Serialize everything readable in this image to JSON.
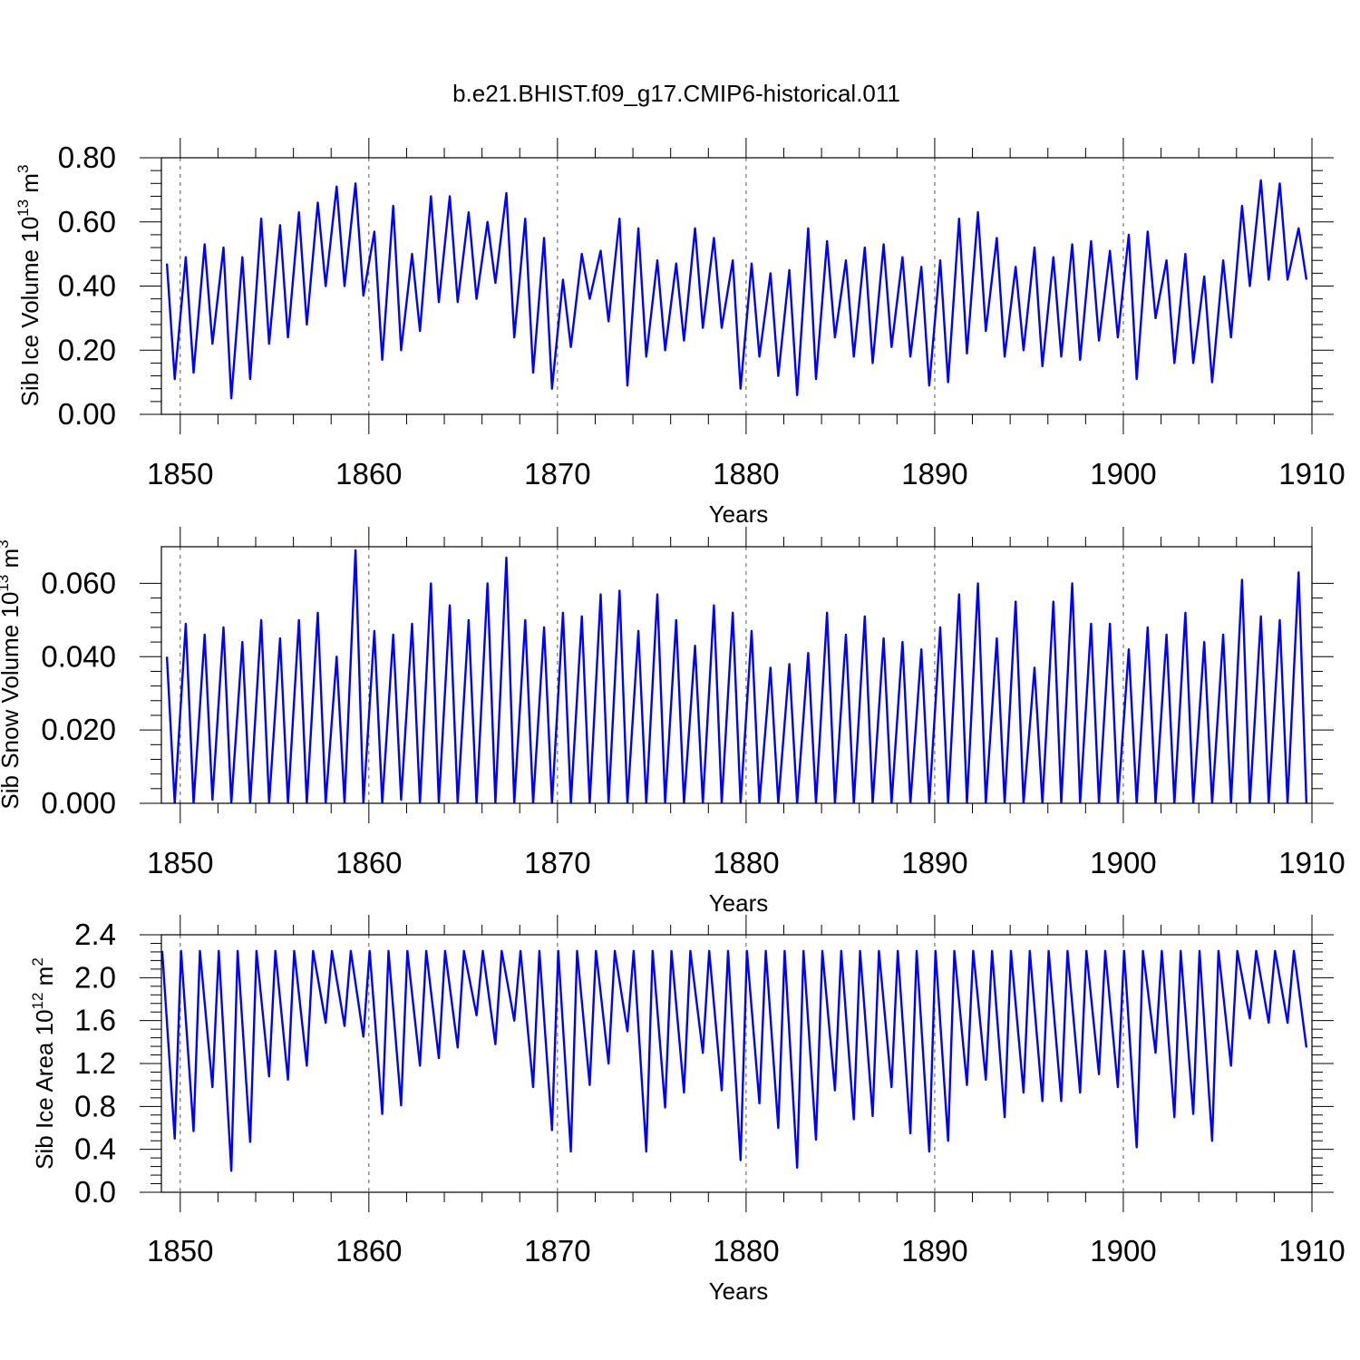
{
  "figure": {
    "title": "b.e21.BHIST.f09_g17.CMIP6-historical.011",
    "line_color": "#0000ff"
  },
  "chart_data": [
    {
      "type": "line",
      "name": "ice-volume",
      "xlabel": "Years",
      "ylabel": {
        "base": "Sib Ice Volume 10",
        "exp": "13",
        "unit": " m",
        "unit_exp": "3"
      },
      "xlim": [
        1849,
        1910
      ],
      "ylim": [
        0.0,
        0.8
      ],
      "xticks": [
        1850,
        1860,
        1870,
        1880,
        1890,
        1900,
        1910
      ],
      "xtick_labels": [
        "1850",
        "1860",
        "1870",
        "1880",
        "1890",
        "1900",
        "1910"
      ],
      "yticks": [
        0.0,
        0.2,
        0.4,
        0.6,
        0.8
      ],
      "ytick_labels": [
        "0.00",
        "0.20",
        "0.40",
        "0.60",
        "0.80"
      ],
      "grid_x": true,
      "seasonal": {
        "min_month": 9,
        "max_month": 4,
        "annual_max": [
          0.47,
          0.49,
          0.53,
          0.52,
          0.49,
          0.61,
          0.59,
          0.63,
          0.66,
          0.71,
          0.72,
          0.57,
          0.65,
          0.5,
          0.68,
          0.68,
          0.63,
          0.6,
          0.69,
          0.61,
          0.55,
          0.42,
          0.5,
          0.51,
          0.61,
          0.58,
          0.48,
          0.47,
          0.58,
          0.55,
          0.48,
          0.47,
          0.44,
          0.45,
          0.58,
          0.54,
          0.48,
          0.52,
          0.53,
          0.49,
          0.46,
          0.48,
          0.61,
          0.63,
          0.55,
          0.46,
          0.52,
          0.49,
          0.53,
          0.54,
          0.51,
          0.56,
          0.57,
          0.48,
          0.5,
          0.43,
          0.48,
          0.65,
          0.73,
          0.72,
          0.58
        ],
        "annual_min": [
          0.11,
          0.13,
          0.22,
          0.05,
          0.11,
          0.22,
          0.24,
          0.28,
          0.4,
          0.4,
          0.37,
          0.17,
          0.2,
          0.26,
          0.35,
          0.35,
          0.36,
          0.41,
          0.24,
          0.13,
          0.08,
          0.21,
          0.36,
          0.29,
          0.09,
          0.18,
          0.2,
          0.23,
          0.27,
          0.27,
          0.08,
          0.18,
          0.12,
          0.06,
          0.11,
          0.24,
          0.18,
          0.16,
          0.21,
          0.18,
          0.09,
          0.1,
          0.19,
          0.26,
          0.18,
          0.2,
          0.15,
          0.18,
          0.17,
          0.23,
          0.24,
          0.11,
          0.3,
          0.16,
          0.16,
          0.1,
          0.24,
          0.4,
          0.42,
          0.42,
          0.42
        ]
      }
    },
    {
      "type": "line",
      "name": "snow-volume",
      "xlabel": "Years",
      "ylabel": {
        "base": "Sib Snow Volume 10",
        "exp": "13",
        "unit": " m",
        "unit_exp": "3"
      },
      "xlim": [
        1849,
        1910
      ],
      "ylim": [
        0.0,
        0.07
      ],
      "xticks": [
        1850,
        1860,
        1870,
        1880,
        1890,
        1900,
        1910
      ],
      "xtick_labels": [
        "1850",
        "1860",
        "1870",
        "1880",
        "1890",
        "1900",
        "1910"
      ],
      "yticks": [
        0.0,
        0.02,
        0.04,
        0.06
      ],
      "ytick_labels": [
        "0.000",
        "0.020",
        "0.040",
        "0.060"
      ],
      "grid_x": true,
      "seasonal": {
        "min_month": 9,
        "max_month": 4,
        "annual_max": [
          0.04,
          0.049,
          0.046,
          0.048,
          0.044,
          0.05,
          0.045,
          0.05,
          0.052,
          0.04,
          0.069,
          0.047,
          0.046,
          0.049,
          0.06,
          0.054,
          0.05,
          0.06,
          0.067,
          0.05,
          0.048,
          0.052,
          0.051,
          0.057,
          0.058,
          0.047,
          0.057,
          0.05,
          0.043,
          0.054,
          0.052,
          0.047,
          0.037,
          0.038,
          0.041,
          0.052,
          0.046,
          0.051,
          0.045,
          0.044,
          0.042,
          0.048,
          0.057,
          0.06,
          0.045,
          0.055,
          0.037,
          0.055,
          0.06,
          0.049,
          0.049,
          0.042,
          0.048,
          0.046,
          0.052,
          0.044,
          0.046,
          0.061,
          0.051,
          0.05,
          0.063
        ],
        "annual_min": [
          0.0,
          0.0,
          0.001,
          0.0,
          0.0,
          0.0,
          0.0,
          0.0,
          0.0,
          0.0,
          0.0,
          0.0,
          0.001,
          0.0,
          0.0,
          0.0,
          0.0,
          0.0,
          0.0,
          0.0,
          0.0,
          0.0,
          0.0,
          0.0,
          0.0,
          0.0,
          0.0,
          0.0,
          0.0,
          0.0,
          0.0,
          0.0,
          0.0,
          0.0,
          0.0,
          0.0,
          0.0,
          0.0,
          0.0,
          0.0,
          0.0,
          0.0,
          0.0,
          0.0,
          0.0,
          0.0,
          0.0,
          0.0,
          0.0,
          0.0,
          0.0,
          0.0,
          0.0,
          0.0,
          0.0,
          0.0,
          0.0,
          0.0,
          0.0,
          0.0,
          0.0
        ]
      }
    },
    {
      "type": "line",
      "name": "ice-area",
      "xlabel": "Years",
      "ylabel": {
        "base": "Sib Ice Area 10",
        "exp": "12",
        "unit": " m",
        "unit_exp": "2"
      },
      "xlim": [
        1849,
        1910
      ],
      "ylim": [
        0.0,
        2.4
      ],
      "xticks": [
        1850,
        1860,
        1870,
        1880,
        1890,
        1900,
        1910
      ],
      "xtick_labels": [
        "1850",
        "1860",
        "1870",
        "1880",
        "1890",
        "1900",
        "1910"
      ],
      "yticks": [
        0.0,
        0.4,
        0.8,
        1.2,
        1.6,
        2.0,
        2.4
      ],
      "ytick_labels": [
        "0.0",
        "0.4",
        "0.8",
        "1.2",
        "1.6",
        "2.0",
        "2.4"
      ],
      "grid_x": true,
      "seasonal": {
        "min_month": 9,
        "max_month": 1,
        "annual_max": [
          2.25,
          2.25,
          2.25,
          2.25,
          2.25,
          2.25,
          2.25,
          2.25,
          2.25,
          2.25,
          2.25,
          2.25,
          2.25,
          2.25,
          2.25,
          2.25,
          2.25,
          2.25,
          2.25,
          2.25,
          2.25,
          2.25,
          2.25,
          2.25,
          2.25,
          2.25,
          2.25,
          2.25,
          2.25,
          2.25,
          2.25,
          2.25,
          2.25,
          2.25,
          2.25,
          2.25,
          2.25,
          2.25,
          2.25,
          2.25,
          2.25,
          2.25,
          2.25,
          2.25,
          2.25,
          2.25,
          2.25,
          2.25,
          2.25,
          2.25,
          2.25,
          2.25,
          2.25,
          2.25,
          2.25,
          2.25,
          2.25,
          2.25,
          2.25,
          2.25,
          2.25
        ],
        "annual_min": [
          0.5,
          0.57,
          0.98,
          0.2,
          0.47,
          1.08,
          1.05,
          1.18,
          1.58,
          1.55,
          1.45,
          0.73,
          0.81,
          1.18,
          1.25,
          1.35,
          1.65,
          1.38,
          1.6,
          0.98,
          0.58,
          0.38,
          1.0,
          1.2,
          1.5,
          0.38,
          0.79,
          0.93,
          1.3,
          0.95,
          0.3,
          0.83,
          0.6,
          0.23,
          0.49,
          0.95,
          0.68,
          0.71,
          0.98,
          0.55,
          0.38,
          0.48,
          1.0,
          1.05,
          0.7,
          0.93,
          0.85,
          0.85,
          0.93,
          1.1,
          0.98,
          0.42,
          1.3,
          0.7,
          0.73,
          0.48,
          1.18,
          1.62,
          1.58,
          1.58,
          1.35
        ]
      }
    }
  ]
}
